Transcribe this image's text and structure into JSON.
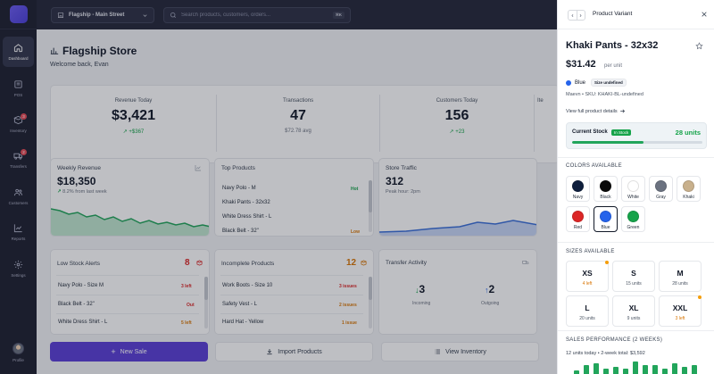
{
  "sidebar": {
    "items": [
      {
        "label": "Dashboard",
        "icon": "home-icon",
        "active": true,
        "badge": ""
      },
      {
        "label": "POS",
        "icon": "pos-icon",
        "active": false,
        "badge": ""
      },
      {
        "label": "Inventory",
        "icon": "box-icon",
        "active": false,
        "badge": "3"
      },
      {
        "label": "Transfers",
        "icon": "truck-icon",
        "active": false,
        "badge": "2"
      },
      {
        "label": "Customers",
        "icon": "users-icon",
        "active": false,
        "badge": ""
      },
      {
        "label": "Reports",
        "icon": "chart-icon",
        "active": false,
        "badge": ""
      },
      {
        "label": "Settings",
        "icon": "gear-icon",
        "active": false,
        "badge": ""
      }
    ],
    "profile_label": "Profile"
  },
  "topbar": {
    "store": "Flagship - Main Street",
    "search_placeholder": "Search products, customers, orders...",
    "shortcut": "⌘K"
  },
  "header": {
    "title": "Flagship Store",
    "welcome": "Welcome back, Evan"
  },
  "stats": [
    {
      "label": "Revenue Today",
      "value": "$3,421",
      "sub": "+$367",
      "trend": "up"
    },
    {
      "label": "Transactions",
      "value": "47",
      "sub": "$72.78 avg",
      "trend": ""
    },
    {
      "label": "Customers Today",
      "value": "156",
      "sub": "+23",
      "trend": "up"
    },
    {
      "label": "Ite",
      "value": "",
      "sub": "",
      "trend": ""
    }
  ],
  "weekly_revenue": {
    "title": "Weekly Revenue",
    "value": "$18,350",
    "change": "8.2%",
    "change_text": "8.2% from last week"
  },
  "top_products": {
    "title": "Top Products",
    "items": [
      {
        "name": "Navy Polo - M",
        "tag": "Hot"
      },
      {
        "name": "Khaki Pants - 32x32",
        "tag": ""
      },
      {
        "name": "White Dress Shirt - L",
        "tag": ""
      },
      {
        "name": "Black Belt - 32\"",
        "tag": "Low"
      }
    ]
  },
  "store_traffic": {
    "title": "Store Traffic",
    "value": "312",
    "sub": "Peak hour: 2pm"
  },
  "low_stock": {
    "title": "Low Stock Alerts",
    "count": "8",
    "items": [
      {
        "name": "Navy Polo - Size M",
        "status": "3 left"
      },
      {
        "name": "Black Belt - 32\"",
        "status": "Out"
      },
      {
        "name": "White Dress Shirt - L",
        "status": "5 left"
      }
    ]
  },
  "incomplete": {
    "title": "Incomplete Products",
    "count": "12",
    "items": [
      {
        "name": "Work Boots - Size 10",
        "status": "3 issues"
      },
      {
        "name": "Safety Vest - L",
        "status": "2 issues"
      },
      {
        "name": "Hard Hat - Yellow",
        "status": "1 issue"
      }
    ]
  },
  "transfer": {
    "title": "Transfer Activity",
    "incoming": "3",
    "incoming_label": "Incoming",
    "outgoing": "2",
    "outgoing_label": "Outgoing"
  },
  "actions": {
    "new_sale": "New Sale",
    "import": "Import Products",
    "view_inventory": "View Inventory"
  },
  "panel": {
    "title": "Product Variant",
    "product_name": "Khaki Pants - 32x32",
    "price": "$31.42",
    "per_unit": "per unit",
    "color": "Blue",
    "size_pill": "Size undefined",
    "meta": "Maevn • SKU: KHAKI-BL-undefined",
    "link": "View full product details",
    "stock": {
      "label": "Current Stock",
      "status": "In Stock",
      "units": "28 units",
      "fill_fraction": 0.55
    },
    "colors_title": "COLORS AVAILABLE",
    "colors": [
      {
        "name": "Navy",
        "hex": "#0f1f3d",
        "selected": false
      },
      {
        "name": "Black",
        "hex": "#0a0a0a",
        "selected": false
      },
      {
        "name": "White",
        "hex": "#ffffff",
        "selected": false
      },
      {
        "name": "Gray",
        "hex": "#6b7280",
        "selected": false
      },
      {
        "name": "Khaki",
        "hex": "#c8b08c",
        "selected": false
      },
      {
        "name": "Red",
        "hex": "#dc2626",
        "selected": false
      },
      {
        "name": "Blue",
        "hex": "#2563eb",
        "selected": true
      },
      {
        "name": "Green",
        "hex": "#16a34a",
        "selected": false
      }
    ],
    "sizes_title": "SIZES AVAILABLE",
    "sizes": [
      {
        "code": "XS",
        "left": "4 left",
        "warn": true
      },
      {
        "code": "S",
        "left": "15 units",
        "warn": false
      },
      {
        "code": "M",
        "left": "28 units",
        "warn": false
      },
      {
        "code": "L",
        "left": "20 units",
        "warn": false
      },
      {
        "code": "XL",
        "left": "9 units",
        "warn": false
      },
      {
        "code": "XXL",
        "left": "3 left",
        "warn": true
      }
    ],
    "sales_title": "SALES PERFORMANCE (2 WEEKS)",
    "sales_text": "12 units today  •  2-week total: $3,592",
    "sales_bars": [
      2,
      5,
      6,
      3,
      4,
      3,
      7,
      5,
      5,
      3,
      6,
      4,
      5
    ]
  }
}
